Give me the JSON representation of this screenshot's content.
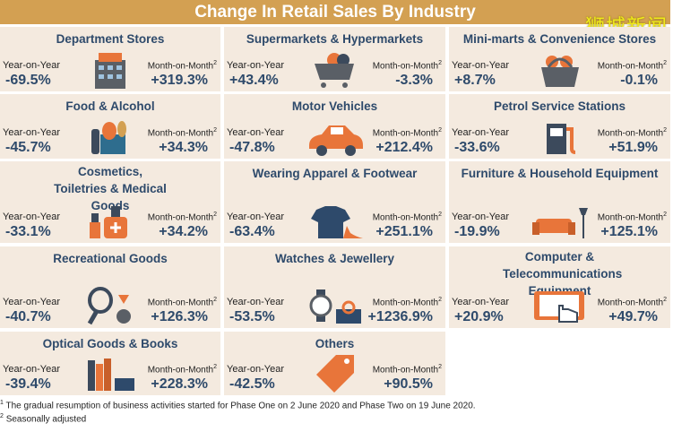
{
  "title": "Change In Retail Sales By Industry",
  "watermark": "狮城新闻",
  "yoy_label": "Year-on-Year",
  "mom_label": "Month-on-Month",
  "mom_sup": "2",
  "cards": [
    {
      "title": "Department Stores",
      "yoy": "-69.5%",
      "mom": "+319.3%",
      "icon": "department-store-icon"
    },
    {
      "title": "Supermarkets & Hypermarkets",
      "yoy": "+43.4%",
      "mom": "-3.3%",
      "icon": "shopping-cart-icon"
    },
    {
      "title": "Mini-marts & Convenience Stores",
      "yoy": "+8.7%",
      "mom": "-0.1%",
      "icon": "basket-icon"
    },
    {
      "title": "Food & Alcohol",
      "yoy": "-45.7%",
      "mom": "+34.3%",
      "icon": "food-bottle-icon"
    },
    {
      "title": "Motor Vehicles",
      "yoy": "-47.8%",
      "mom": "+212.4%",
      "icon": "car-icon"
    },
    {
      "title": "Petrol Service Stations",
      "yoy": "-33.6%",
      "mom": "+51.9%",
      "icon": "fuel-pump-icon"
    },
    {
      "title": "Cosmetics, Toiletries & Medical Goods",
      "yoy": "-33.1%",
      "mom": "+34.2%",
      "icon": "cosmetics-icon"
    },
    {
      "title": "Wearing Apparel & Footwear",
      "yoy": "-63.4%",
      "mom": "+251.1%",
      "icon": "shirt-shoe-icon"
    },
    {
      "title": "Furniture & Household Equipment",
      "yoy": "-19.9%",
      "mom": "+125.1%",
      "icon": "sofa-lamp-icon"
    },
    {
      "title": "Recreational Goods",
      "yoy": "-40.7%",
      "mom": "+126.3%",
      "icon": "tennis-racket-icon"
    },
    {
      "title": "Watches & Jewellery",
      "yoy": "-53.5%",
      "mom": "+1236.9%",
      "icon": "watch-ring-icon"
    },
    {
      "title": "Computer & Telecommunications Equipment",
      "yoy": "+20.9%",
      "mom": "+49.7%",
      "icon": "tablet-hand-icon"
    },
    {
      "title": "Optical Goods & Books",
      "yoy": "-39.4%",
      "mom": "+228.3%",
      "icon": "books-icon"
    },
    {
      "title": "Others",
      "yoy": "-42.5%",
      "mom": "+90.5%",
      "icon": "price-tag-icon"
    }
  ],
  "footnotes": [
    {
      "mark": "1",
      "text": "The gradual resumption of business activities started for Phase One on 2 June 2020 and Phase Two on 19 June 2020."
    },
    {
      "mark": "2",
      "text": "Seasonally adjusted"
    }
  ],
  "colors": {
    "header": "#d3a052",
    "card": "#f4eadf",
    "title": "#2e4a6b",
    "accent": "#e8753a",
    "icon_gray": "#5a5f66"
  }
}
